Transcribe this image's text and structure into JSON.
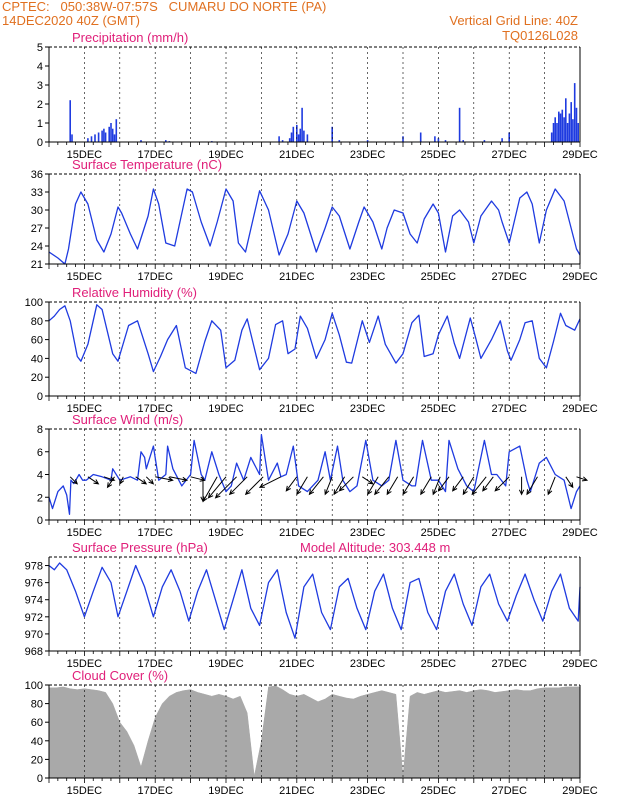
{
  "header": {
    "line1": "CPTEC:   050:38W-07:57S   CUMARU DO NORTE (PA)",
    "line2": "14DEC2020 40Z (GMT)",
    "right1": "Vertical Grid Line: 40Z",
    "right2": "TQ0126L028"
  },
  "colors": {
    "header": "#e07020",
    "title": "#e0207a",
    "series": "#1f3be0",
    "cloud": "#a9a9a9",
    "axis": "#000000"
  },
  "x_tick_labels": [
    "15DEC",
    "17DEC",
    "19DEC",
    "21DEC",
    "23DEC",
    "25DEC",
    "27DEC",
    "29DEC"
  ],
  "chart_data": [
    {
      "id": "precip",
      "type": "bar",
      "title": "Precipitation (mm/h)",
      "ylim": [
        0,
        5
      ],
      "yticks": [
        "0",
        "1",
        "2",
        "3",
        "4",
        "5"
      ],
      "x_range": [
        14.0,
        29.0
      ],
      "values": [
        [
          14.6,
          2.2
        ],
        [
          14.65,
          0.4
        ],
        [
          15.1,
          0.2
        ],
        [
          15.2,
          0.3
        ],
        [
          15.3,
          0.4
        ],
        [
          15.4,
          0.5
        ],
        [
          15.5,
          0.6
        ],
        [
          15.55,
          0.7
        ],
        [
          15.6,
          0.5
        ],
        [
          15.7,
          0.8
        ],
        [
          15.75,
          1.0
        ],
        [
          15.8,
          0.7
        ],
        [
          15.85,
          0.4
        ],
        [
          15.9,
          1.2
        ],
        [
          16.6,
          0.1
        ],
        [
          17.3,
          0.1
        ],
        [
          17.4,
          0.05
        ],
        [
          18.6,
          0.05
        ],
        [
          20.5,
          0.3
        ],
        [
          20.6,
          0.1
        ],
        [
          20.8,
          0.2
        ],
        [
          20.85,
          0.5
        ],
        [
          20.9,
          0.8
        ],
        [
          21.0,
          0.9
        ],
        [
          21.05,
          0.4
        ],
        [
          21.1,
          0.7
        ],
        [
          21.15,
          1.8
        ],
        [
          21.2,
          0.6
        ],
        [
          21.3,
          0.4
        ],
        [
          22.0,
          0.8
        ],
        [
          22.2,
          0.1
        ],
        [
          23.0,
          0.1
        ],
        [
          24.0,
          0.3
        ],
        [
          24.5,
          0.5
        ],
        [
          24.9,
          0.3
        ],
        [
          25.0,
          0.2
        ],
        [
          25.2,
          0.1
        ],
        [
          25.6,
          1.8
        ],
        [
          25.7,
          0.1
        ],
        [
          26.3,
          0.1
        ],
        [
          26.8,
          0.2
        ],
        [
          27.0,
          0.5
        ],
        [
          28.2,
          0.5
        ],
        [
          28.25,
          1.0
        ],
        [
          28.3,
          1.3
        ],
        [
          28.35,
          1.0
        ],
        [
          28.4,
          1.6
        ],
        [
          28.45,
          1.5
        ],
        [
          28.5,
          1.7
        ],
        [
          28.55,
          1.3
        ],
        [
          28.6,
          2.3
        ],
        [
          28.65,
          1.0
        ],
        [
          28.7,
          1.5
        ],
        [
          28.75,
          2.1
        ],
        [
          28.8,
          1.2
        ],
        [
          28.85,
          3.1
        ],
        [
          28.9,
          1.8
        ],
        [
          28.95,
          1.0
        ]
      ]
    },
    {
      "id": "temp",
      "type": "line",
      "title": "Surface Temperature (nC)",
      "ylim": [
        21,
        36
      ],
      "yticks": [
        "21",
        "24",
        "27",
        "30",
        "33",
        "36"
      ],
      "x_range": [
        14.0,
        29.0
      ],
      "x": [
        14.0,
        14.25,
        14.45,
        14.55,
        14.75,
        14.9,
        15.1,
        15.35,
        15.55,
        15.75,
        15.95,
        16.05,
        16.3,
        16.5,
        16.8,
        16.95,
        17.1,
        17.3,
        17.55,
        17.9,
        18.05,
        18.3,
        18.55,
        18.75,
        19.0,
        19.2,
        19.35,
        19.55,
        19.95,
        20.2,
        20.5,
        20.75,
        21.0,
        21.2,
        21.55,
        21.8,
        22.0,
        22.2,
        22.5,
        22.75,
        22.9,
        23.15,
        23.4,
        23.55,
        23.75,
        24.0,
        24.2,
        24.4,
        24.6,
        24.85,
        25.0,
        25.2,
        25.4,
        25.6,
        25.85,
        26.0,
        26.2,
        26.5,
        26.7,
        26.8,
        27.0,
        27.3,
        27.5,
        27.65,
        27.85,
        28.05,
        28.3,
        28.55,
        28.75,
        28.9,
        29.0
      ],
      "values": [
        23.0,
        22.0,
        21.0,
        23.5,
        31.0,
        33.0,
        31.0,
        25.0,
        23.0,
        26.0,
        30.5,
        29.5,
        26.0,
        23.5,
        29.0,
        33.5,
        31.0,
        24.5,
        24.0,
        33.5,
        33.0,
        28.0,
        24.0,
        28.0,
        33.5,
        31.5,
        24.5,
        23.0,
        33.2,
        30.0,
        22.5,
        26.0,
        31.5,
        29.5,
        23.0,
        27.0,
        30.5,
        29.0,
        23.5,
        28.0,
        30.5,
        28.0,
        23.5,
        27.0,
        30.0,
        29.5,
        26.0,
        24.5,
        28.5,
        31.0,
        29.5,
        23.0,
        29.0,
        30.0,
        28.0,
        24.5,
        29.0,
        31.5,
        30.0,
        28.0,
        24.5,
        32.0,
        33.0,
        31.0,
        24.5,
        30.0,
        33.5,
        31.5,
        27.0,
        23.5,
        22.5
      ]
    },
    {
      "id": "rh",
      "type": "line",
      "title": "Relative Humidity (%)",
      "ylim": [
        0,
        100
      ],
      "yticks": [
        "0",
        "20",
        "40",
        "60",
        "80",
        "100"
      ],
      "x_range": [
        14.0,
        29.0
      ],
      "x": [
        14.0,
        14.15,
        14.3,
        14.45,
        14.6,
        14.8,
        14.9,
        15.1,
        15.35,
        15.5,
        15.8,
        15.95,
        16.25,
        16.5,
        16.8,
        16.95,
        17.15,
        17.35,
        17.6,
        17.85,
        18.15,
        18.4,
        18.6,
        18.85,
        19.0,
        19.25,
        19.45,
        19.6,
        19.95,
        20.2,
        20.4,
        20.6,
        20.75,
        20.95,
        21.1,
        21.3,
        21.55,
        21.8,
        22.0,
        22.2,
        22.4,
        22.55,
        22.85,
        23.05,
        23.3,
        23.5,
        23.8,
        24.0,
        24.25,
        24.45,
        24.6,
        24.85,
        25.0,
        25.25,
        25.45,
        25.6,
        25.9,
        26.05,
        26.2,
        26.5,
        26.75,
        26.95,
        27.05,
        27.3,
        27.45,
        27.65,
        27.85,
        28.05,
        28.25,
        28.45,
        28.6,
        28.85,
        29.0
      ],
      "values": [
        80.0,
        85.0,
        92.0,
        96.0,
        80.0,
        42.0,
        37.0,
        55.0,
        97.0,
        92.0,
        45.0,
        37.0,
        75.0,
        80.0,
        45.0,
        26.0,
        42.0,
        60.0,
        75.0,
        30.0,
        24.0,
        58.0,
        80.0,
        70.0,
        30.0,
        38.0,
        70.0,
        82.0,
        28.0,
        40.0,
        76.0,
        80.0,
        45.0,
        50.0,
        85.0,
        72.0,
        40.0,
        60.0,
        88.0,
        65.0,
        36.0,
        35.0,
        80.0,
        57.0,
        85.0,
        55.0,
        35.0,
        45.0,
        78.0,
        86.0,
        42.0,
        45.0,
        65.0,
        85.0,
        56.0,
        40.0,
        83.0,
        62.0,
        40.0,
        60.0,
        80.0,
        48.0,
        38.0,
        60.0,
        78.0,
        80.0,
        40.0,
        30.0,
        58.0,
        88.0,
        75.0,
        70.0,
        82.0
      ]
    },
    {
      "id": "wind",
      "type": "line",
      "title": "Surface Wind (m/s)",
      "ylim": [
        0,
        8
      ],
      "yticks": [
        "0",
        "2",
        "4",
        "6",
        "8"
      ],
      "x_range": [
        14.0,
        29.0
      ],
      "x": [
        14.0,
        14.1,
        14.25,
        14.4,
        14.5,
        14.58,
        14.62,
        14.7,
        14.85,
        14.95,
        15.05,
        15.25,
        15.5,
        15.75,
        15.8,
        16.0,
        16.3,
        16.5,
        16.6,
        16.7,
        16.75,
        16.95,
        17.1,
        17.3,
        17.35,
        17.5,
        17.75,
        18.0,
        18.1,
        18.3,
        18.4,
        18.6,
        18.8,
        19.0,
        19.15,
        19.3,
        19.5,
        19.7,
        19.95,
        20.0,
        20.2,
        20.45,
        20.55,
        20.7,
        20.9,
        21.05,
        21.3,
        21.6,
        21.8,
        21.95,
        22.15,
        22.3,
        22.5,
        22.7,
        22.95,
        23.15,
        23.4,
        23.6,
        23.8,
        24.0,
        24.25,
        24.35,
        24.55,
        24.8,
        25.0,
        25.2,
        25.3,
        25.55,
        25.8,
        26.0,
        26.3,
        26.5,
        26.65,
        26.9,
        27.0,
        27.3,
        27.5,
        27.6,
        27.85,
        28.05,
        28.3,
        28.55,
        28.75,
        28.9,
        29.0
      ],
      "values": [
        2.0,
        1.0,
        2.5,
        3.0,
        2.2,
        0.5,
        3.5,
        3.2,
        4.0,
        3.5,
        3.5,
        4.0,
        3.8,
        3.5,
        4.5,
        3.5,
        3.8,
        3.5,
        6.0,
        5.5,
        4.5,
        6.5,
        3.5,
        4.0,
        6.5,
        4.5,
        3.0,
        4.0,
        7.0,
        4.0,
        3.5,
        6.0,
        4.0,
        2.5,
        3.0,
        5.0,
        3.5,
        5.5,
        4.0,
        7.5,
        3.5,
        5.0,
        3.8,
        4.0,
        6.5,
        3.0,
        2.5,
        3.5,
        6.0,
        3.5,
        6.5,
        3.5,
        2.5,
        3.0,
        7.0,
        3.5,
        3.0,
        3.5,
        7.0,
        3.5,
        3.0,
        3.0,
        7.0,
        3.5,
        3.5,
        2.5,
        7.0,
        4.5,
        3.0,
        2.5,
        7.0,
        4.0,
        4.0,
        3.0,
        6.0,
        6.5,
        3.5,
        2.5,
        5.0,
        5.5,
        4.0,
        3.5,
        1.0,
        2.5,
        3.0
      ]
    },
    {
      "id": "pressure",
      "type": "line",
      "title": "Surface Pressure (hPa)",
      "annotation": "Model Altitude: 303.448 m",
      "ylim": [
        968,
        979
      ],
      "yticks": [
        "968",
        "970",
        "972",
        "974",
        "976",
        "978"
      ],
      "x_range": [
        14.0,
        29.0
      ],
      "x": [
        14.0,
        14.15,
        14.3,
        14.5,
        14.75,
        15.0,
        15.25,
        15.5,
        15.75,
        15.95,
        16.2,
        16.45,
        16.7,
        16.95,
        17.2,
        17.45,
        17.7,
        17.95,
        18.2,
        18.45,
        18.7,
        18.95,
        19.2,
        19.45,
        19.7,
        19.95,
        20.2,
        20.45,
        20.7,
        20.95,
        21.2,
        21.45,
        21.7,
        21.95,
        22.2,
        22.45,
        22.7,
        22.95,
        23.2,
        23.45,
        23.7,
        23.95,
        24.2,
        24.45,
        24.7,
        24.95,
        25.2,
        25.45,
        25.7,
        25.95,
        26.2,
        26.45,
        26.7,
        26.95,
        27.2,
        27.45,
        27.7,
        27.95,
        28.2,
        28.45,
        28.7,
        28.95,
        29.0
      ],
      "values": [
        978.0,
        977.5,
        978.3,
        977.5,
        975.0,
        972.0,
        975.0,
        977.8,
        976.0,
        972.0,
        975.0,
        978.0,
        975.5,
        972.0,
        975.5,
        977.5,
        975.0,
        971.5,
        975.0,
        977.5,
        974.0,
        970.5,
        974.0,
        977.5,
        973.0,
        971.0,
        976.0,
        977.5,
        972.5,
        969.5,
        975.5,
        977.0,
        972.5,
        970.5,
        975.5,
        976.5,
        973.0,
        970.5,
        975.0,
        977.0,
        973.0,
        970.5,
        976.0,
        976.5,
        972.5,
        970.5,
        975.0,
        977.0,
        973.5,
        971.0,
        975.5,
        977.0,
        973.5,
        971.5,
        974.5,
        977.0,
        974.0,
        971.5,
        975.0,
        977.0,
        973.0,
        971.5,
        975.5
      ]
    },
    {
      "id": "cloud",
      "type": "area",
      "title": "Cloud Cover (%)",
      "ylim": [
        0,
        100
      ],
      "yticks": [
        "0",
        "20",
        "40",
        "60",
        "80",
        "100"
      ],
      "x_range": [
        14.0,
        29.0
      ],
      "x": [
        14.0,
        14.2,
        14.4,
        14.6,
        14.8,
        15.0,
        15.2,
        15.4,
        15.6,
        15.8,
        16.0,
        16.2,
        16.4,
        16.6,
        16.8,
        17.0,
        17.2,
        17.4,
        17.6,
        17.8,
        18.0,
        18.2,
        18.4,
        18.6,
        18.8,
        19.0,
        19.2,
        19.4,
        19.6,
        19.8,
        20.0,
        20.2,
        20.4,
        20.6,
        20.8,
        21.0,
        21.2,
        21.4,
        21.6,
        21.8,
        22.0,
        22.2,
        22.4,
        22.6,
        22.8,
        23.0,
        23.2,
        23.4,
        23.6,
        23.8,
        24.0,
        24.2,
        24.4,
        24.6,
        24.8,
        25.0,
        25.2,
        25.4,
        25.6,
        25.8,
        26.0,
        26.2,
        26.4,
        26.6,
        26.8,
        27.0,
        27.2,
        27.4,
        27.6,
        27.8,
        28.0,
        28.2,
        28.4,
        28.6,
        28.8,
        29.0
      ],
      "values": [
        97,
        97,
        98,
        96,
        95,
        96,
        95,
        94,
        92,
        80,
        60,
        50,
        35,
        12,
        40,
        65,
        80,
        88,
        92,
        94,
        95,
        92,
        90,
        88,
        90,
        88,
        85,
        88,
        70,
        2,
        40,
        98,
        99,
        95,
        90,
        88,
        90,
        86,
        82,
        85,
        90,
        88,
        86,
        85,
        88,
        90,
        92,
        94,
        92,
        90,
        2,
        88,
        92,
        90,
        92,
        94,
        92,
        93,
        94,
        92,
        94,
        95,
        94,
        92,
        93,
        94,
        95,
        94,
        94,
        96,
        97,
        97,
        97,
        98,
        98,
        98
      ]
    }
  ],
  "wind_vectors": {
    "x": [
      14.6,
      15.1,
      15.55,
      15.85,
      16.1,
      16.45,
      16.75,
      17.0,
      17.4,
      18.0,
      18.35,
      18.75,
      19.0,
      19.3,
      19.6,
      20.05,
      20.55,
      21.0,
      21.3,
      21.75,
      22.0,
      22.35,
      22.6,
      22.85,
      23.3,
      23.6,
      23.85,
      24.3,
      24.8,
      25.05,
      25.3,
      25.7,
      26.0,
      26.35,
      26.55,
      27.0,
      27.35,
      27.8,
      28.3,
      28.6,
      28.9
    ],
    "u": [
      1.0,
      1.5,
      1.5,
      -1.0,
      -0.5,
      1.5,
      1.0,
      2.5,
      2.5,
      2.0,
      0.0,
      -2.0,
      -2.5,
      -3.0,
      -2.5,
      -2.5,
      -3.0,
      -1.5,
      -1.5,
      -2.0,
      -1.0,
      -1.5,
      -2.0,
      1.5,
      -1.5,
      -2.0,
      -1.5,
      -1.5,
      -1.5,
      -1.0,
      -1.5,
      -1.5,
      -1.5,
      -2.0,
      -1.5,
      -2.0,
      0.0,
      -1.5,
      -1.0,
      1.0,
      1.5
    ],
    "v": [
      -1.0,
      -1.0,
      -0.5,
      -1.5,
      -1.0,
      -1.0,
      -1.0,
      -0.5,
      -0.5,
      -0.5,
      -3.5,
      -3.5,
      -3.0,
      -3.0,
      -2.5,
      -2.5,
      -1.5,
      -2.0,
      -2.5,
      -2.5,
      -2.5,
      -2.5,
      -2.0,
      -1.0,
      -2.5,
      -2.5,
      -2.5,
      -2.5,
      -2.5,
      -2.5,
      -2.0,
      -2.0,
      -2.5,
      -2.5,
      -2.0,
      -2.0,
      -2.5,
      -2.5,
      -2.5,
      -1.5,
      -0.5
    ]
  }
}
